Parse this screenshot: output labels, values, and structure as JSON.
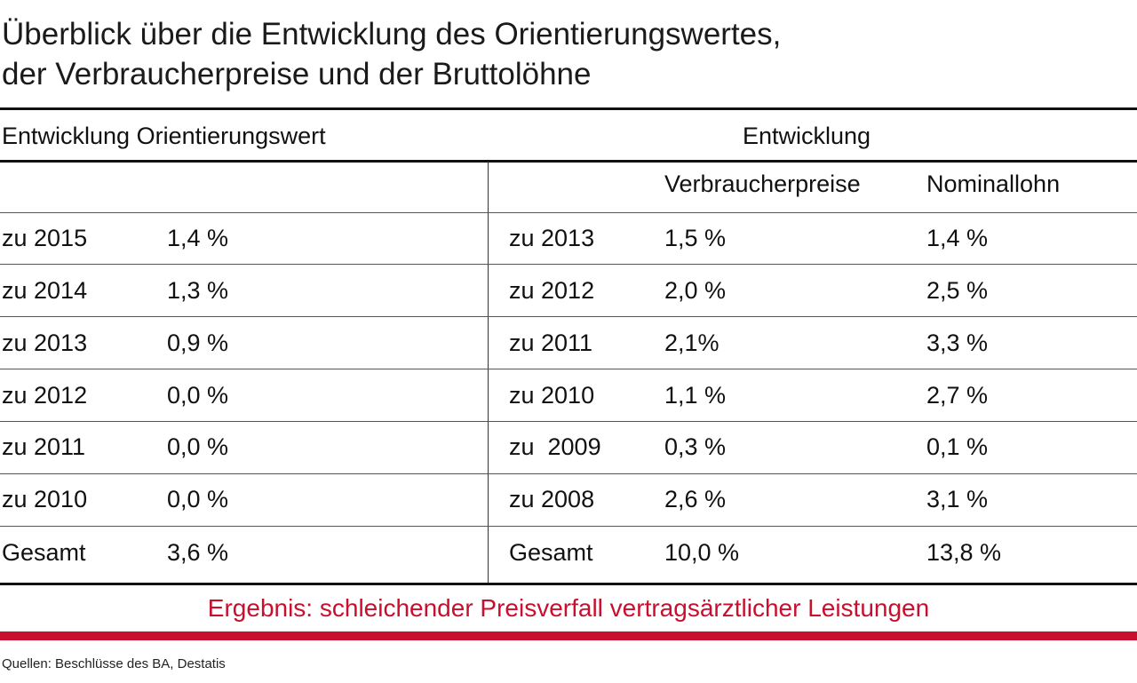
{
  "title": {
    "line1": "Überblick über die Entwicklung des Orientierungswertes,",
    "line2": "der Verbraucherpreise und der Bruttolöhne"
  },
  "header": {
    "left": "Entwicklung Orientierungswert",
    "right": "Entwicklung",
    "col_prices": "Verbraucherpreise",
    "col_wage": "Nominallohn"
  },
  "rows": [
    {
      "left_label": "zu 2015",
      "left_value": "1,4 %",
      "right_label": "zu 2013",
      "prices": "1,5 %",
      "wage": "1,4 %"
    },
    {
      "left_label": "zu 2014",
      "left_value": "1,3 %",
      "right_label": "zu 2012",
      "prices": "2,0 %",
      "wage": "2,5 %"
    },
    {
      "left_label": "zu 2013",
      "left_value": "0,9 %",
      "right_label": "zu 2011",
      "prices": "2,1%",
      "wage": "3,3 %"
    },
    {
      "left_label": "zu 2012",
      "left_value": "0,0 %",
      "right_label": "zu 2010",
      "prices": "1,1 %",
      "wage": "2,7 %"
    },
    {
      "left_label": "zu 2011",
      "left_value": "0,0 %",
      "right_label": "zu  2009",
      "prices": "0,3 %",
      "wage": "0,1 %"
    },
    {
      "left_label": "zu 2010",
      "left_value": "0,0 %",
      "right_label": "zu 2008",
      "prices": "2,6 %",
      "wage": "3,1 %"
    },
    {
      "left_label": "Gesamt",
      "left_value": "3,6 %",
      "right_label": "Gesamt",
      "prices": "10,0 %",
      "wage": "13,8 %"
    }
  ],
  "result": "Ergebnis: schleichender Preisverfall vertragsärztlicher Leistungen",
  "source": "Quellen: Beschlüsse des BA, Destatis",
  "colors": {
    "accent": "#c8102e",
    "text": "#111111"
  }
}
